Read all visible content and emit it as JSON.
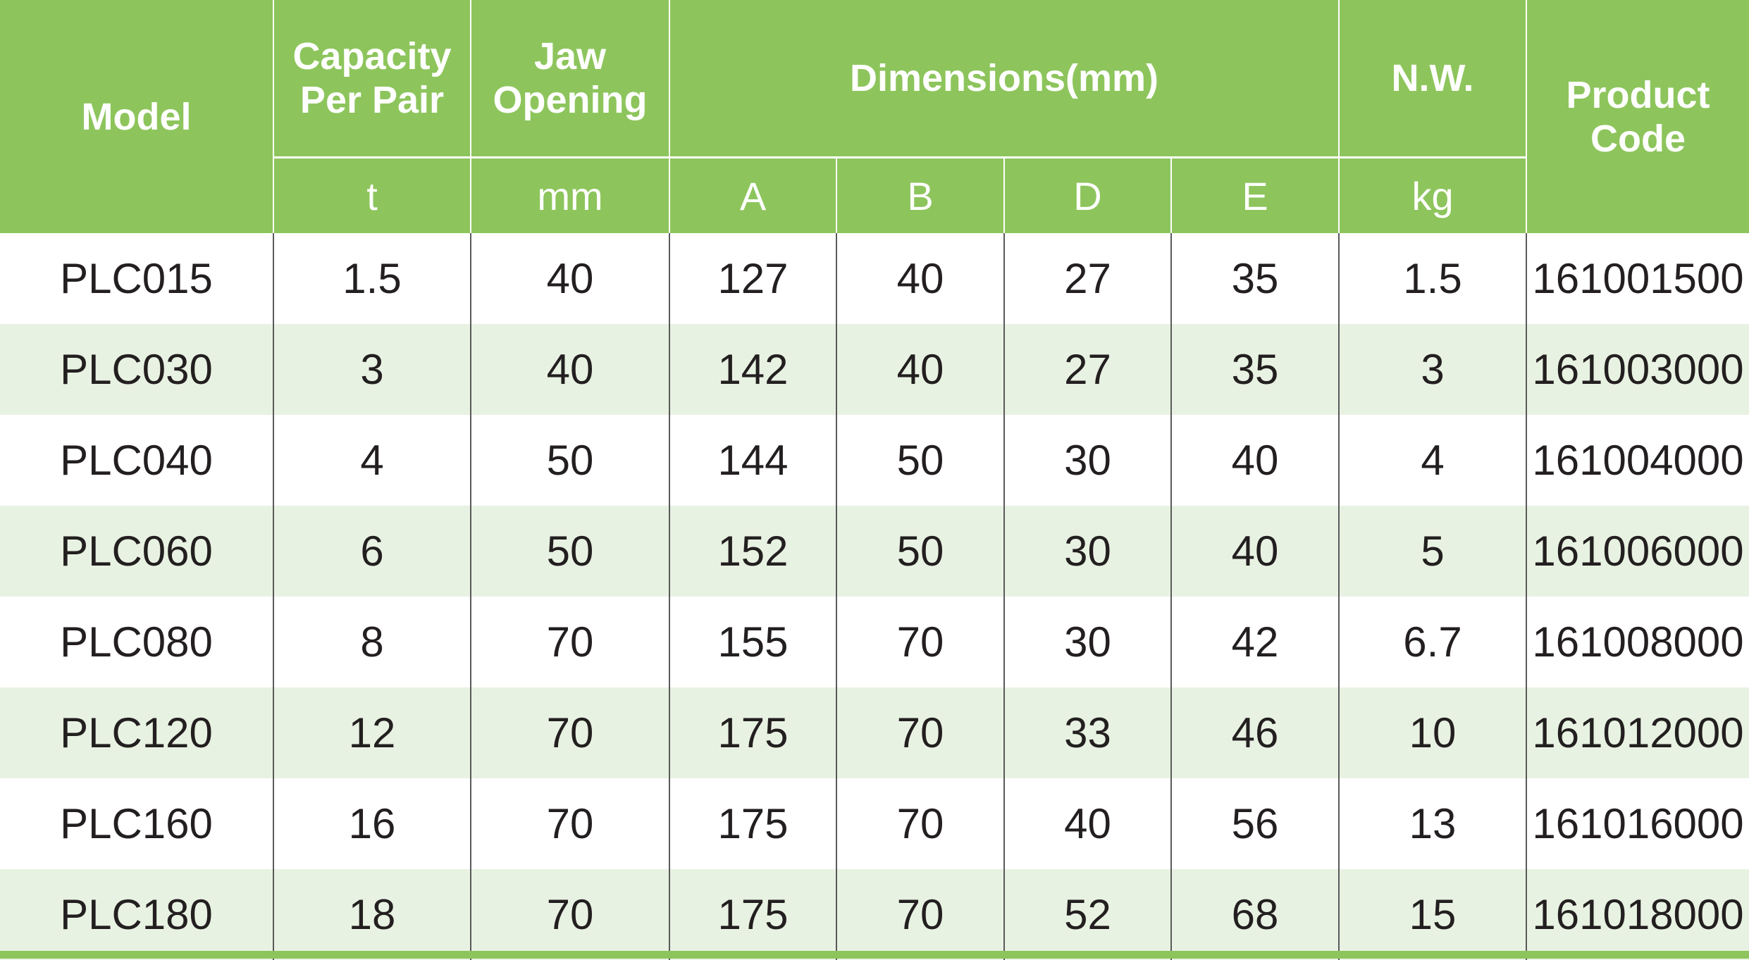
{
  "header": {
    "model": "Model",
    "capacity": [
      "Capacity",
      "Per Pair"
    ],
    "jaw": [
      "Jaw",
      "Opening"
    ],
    "dimensions": "Dimensions(mm)",
    "nw": "N.W.",
    "product_code": [
      "Product",
      "Code"
    ],
    "units": {
      "capacity": "t",
      "jaw": "mm",
      "a": "A",
      "b": "B",
      "d": "D",
      "e": "E",
      "nw": "kg"
    }
  },
  "rows": [
    [
      "PLC015",
      "1.5",
      "40",
      "127",
      "40",
      "27",
      "35",
      "1.5",
      "161001500"
    ],
    [
      "PLC030",
      "3",
      "40",
      "142",
      "40",
      "27",
      "35",
      "3",
      "161003000"
    ],
    [
      "PLC040",
      "4",
      "50",
      "144",
      "50",
      "30",
      "40",
      "4",
      "161004000"
    ],
    [
      "PLC060",
      "6",
      "50",
      "152",
      "50",
      "30",
      "40",
      "5",
      "161006000"
    ],
    [
      "PLC080",
      "8",
      "70",
      "155",
      "70",
      "30",
      "42",
      "6.7",
      "161008000"
    ],
    [
      "PLC120",
      "12",
      "70",
      "175",
      "70",
      "33",
      "46",
      "10",
      "161012000"
    ],
    [
      "PLC160",
      "16",
      "70",
      "175",
      "70",
      "40",
      "56",
      "13",
      "161016000"
    ],
    [
      "PLC180",
      "18",
      "70",
      "175",
      "70",
      "52",
      "68",
      "15",
      "161018000"
    ]
  ],
  "colors": {
    "header_green": "#8dc55c",
    "stripe_light_green": "#e8f2e2",
    "text_dark": "#231f20"
  }
}
